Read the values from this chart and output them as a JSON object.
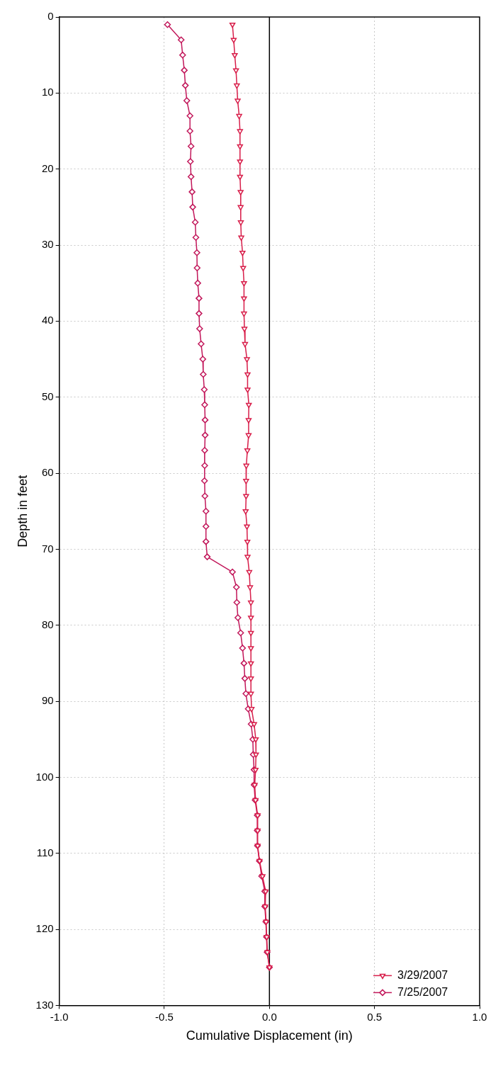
{
  "chart_data": {
    "type": "line",
    "orientation": "horizontal",
    "xlabel": "Cumulative Displacement (in)",
    "ylabel": "Depth in feet",
    "x": [
      1,
      3,
      5,
      7,
      9,
      11,
      13,
      15,
      17,
      19,
      21,
      23,
      25,
      27,
      29,
      31,
      33,
      35,
      37,
      39,
      41,
      43,
      45,
      47,
      49,
      51,
      53,
      55,
      57,
      59,
      61,
      63,
      65,
      67,
      69,
      71,
      73,
      75,
      77,
      79,
      81,
      83,
      85,
      87,
      89,
      91,
      93,
      95,
      97,
      99,
      101,
      103,
      105,
      107,
      109,
      111,
      113,
      115,
      117,
      119,
      121,
      123,
      125
    ],
    "series": [
      {
        "name": "3/29/2007",
        "color": "#d81e4a",
        "marker": "triangle",
        "values": [
          -0.176,
          -0.17,
          -0.165,
          -0.159,
          -0.155,
          -0.151,
          -0.144,
          -0.14,
          -0.14,
          -0.14,
          -0.14,
          -0.137,
          -0.137,
          -0.136,
          -0.134,
          -0.128,
          -0.125,
          -0.121,
          -0.121,
          -0.121,
          -0.119,
          -0.116,
          -0.107,
          -0.104,
          -0.104,
          -0.098,
          -0.099,
          -0.099,
          -0.105,
          -0.11,
          -0.111,
          -0.111,
          -0.113,
          -0.107,
          -0.105,
          -0.104,
          -0.096,
          -0.092,
          -0.088,
          -0.088,
          -0.088,
          -0.088,
          -0.088,
          -0.088,
          -0.088,
          -0.085,
          -0.073,
          -0.065,
          -0.064,
          -0.066,
          -0.07,
          -0.066,
          -0.056,
          -0.056,
          -0.056,
          -0.047,
          -0.033,
          -0.018,
          -0.02,
          -0.016,
          -0.013,
          -0.01,
          0
        ]
      },
      {
        "name": "7/25/2007",
        "color": "#c2185b",
        "marker": "diamond",
        "values": [
          -0.485,
          -0.42,
          -0.413,
          -0.405,
          -0.4,
          -0.393,
          -0.378,
          -0.378,
          -0.373,
          -0.376,
          -0.373,
          -0.368,
          -0.365,
          -0.353,
          -0.35,
          -0.345,
          -0.344,
          -0.341,
          -0.335,
          -0.335,
          -0.332,
          -0.325,
          -0.317,
          -0.315,
          -0.31,
          -0.308,
          -0.306,
          -0.306,
          -0.308,
          -0.308,
          -0.309,
          -0.307,
          -0.302,
          -0.302,
          -0.302,
          -0.296,
          -0.176,
          -0.157,
          -0.155,
          -0.15,
          -0.137,
          -0.128,
          -0.121,
          -0.117,
          -0.112,
          -0.101,
          -0.087,
          -0.079,
          -0.077,
          -0.073,
          -0.073,
          -0.068,
          -0.058,
          -0.058,
          -0.057,
          -0.048,
          -0.037,
          -0.022,
          -0.022,
          -0.017,
          -0.014,
          -0.011,
          0
        ]
      }
    ],
    "xlim": [
      -1,
      1
    ],
    "xticks": [
      {
        "value": -1,
        "label": "-1.0"
      },
      {
        "value": -0.5,
        "label": "-0.5"
      },
      {
        "value": 0,
        "label": "0.0"
      },
      {
        "value": 0.5,
        "label": "0.5"
      },
      {
        "value": 1,
        "label": "1.0"
      }
    ],
    "ylim": [
      130,
      0
    ],
    "yticks": [
      0,
      10,
      20,
      30,
      40,
      50,
      60,
      70,
      80,
      90,
      100,
      110,
      120,
      130
    ],
    "ref_lines": [
      {
        "axis": "x",
        "value": 0,
        "color": "#000000"
      }
    ],
    "grid": true,
    "legend": "bottom right",
    "line_style": "solid"
  }
}
